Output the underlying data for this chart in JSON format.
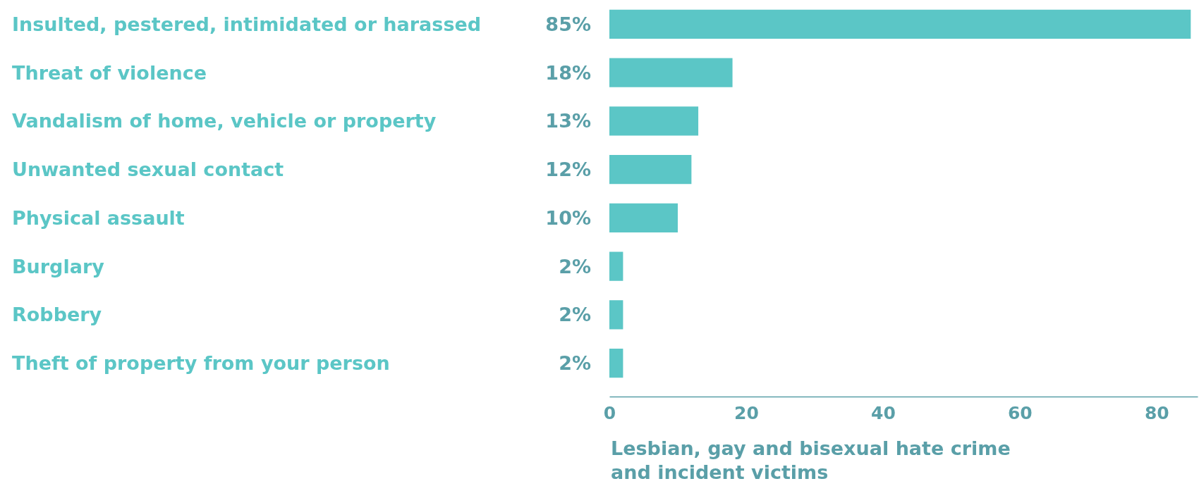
{
  "chart_data": {
    "type": "bar",
    "orientation": "horizontal",
    "xlabel": "Lesbian, gay and bisexual hate crime and incident victims",
    "categories": [
      "Insulted, pestered, intimidated or harassed",
      "Threat of violence",
      "Vandalism of home, vehicle or property",
      "Unwanted sexual contact",
      "Physical assault",
      "Burglary",
      "Robbery",
      "Theft of property from your person"
    ],
    "values": [
      85,
      18,
      13,
      12,
      10,
      2,
      2,
      2
    ],
    "value_labels": [
      "85%",
      "18%",
      "13%",
      "12%",
      "10%",
      "2%",
      "2%",
      "2%"
    ],
    "color": "#5bc6c6",
    "xlim": [
      0,
      86
    ],
    "xticks": [
      0,
      20,
      40,
      60,
      80
    ],
    "grid": false
  }
}
